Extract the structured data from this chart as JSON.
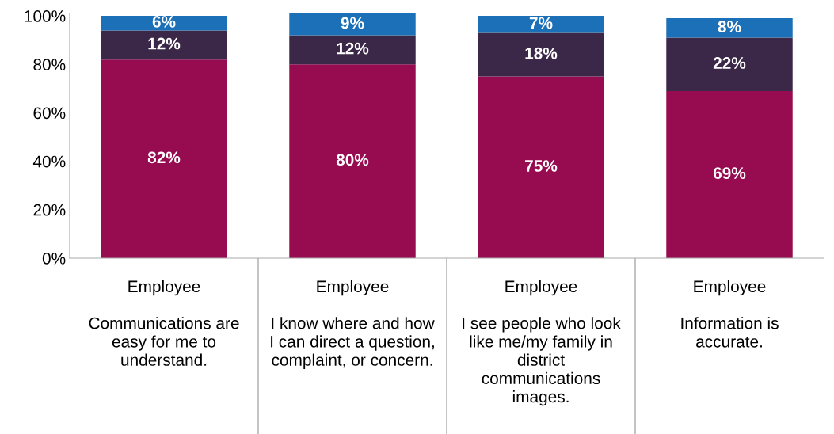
{
  "chart_data": {
    "type": "bar",
    "stacked": true,
    "categories": [
      "Employee\n\nCommunications are\neasy for me to\nunderstand.",
      "Employee\n\nI know where and how\nI can direct a question,\ncomplaint, or concern.",
      "Employee\n\nI see people who look\nlike me/my family in\ndistrict\ncommunications\nimages.",
      "Employee\n\nInformation is\naccurate."
    ],
    "series": [
      {
        "color": "#970c50",
        "values": [
          82,
          80,
          75,
          69
        ],
        "value_labels": [
          "82%",
          "80%",
          "75%",
          "69%"
        ]
      },
      {
        "color": "#3b2748",
        "values": [
          12,
          12,
          18,
          22
        ],
        "value_labels": [
          "12%",
          "12%",
          "18%",
          "22%"
        ]
      },
      {
        "color": "#1b70b8",
        "values": [
          6,
          9,
          7,
          8
        ],
        "value_labels": [
          "6%",
          "9%",
          "7%",
          "8%"
        ]
      }
    ],
    "ylim": [
      0,
      101
    ],
    "yticks": [
      {
        "value": 0,
        "label": "0%"
      },
      {
        "value": 20,
        "label": "20%"
      },
      {
        "value": 40,
        "label": "40%"
      },
      {
        "value": 60,
        "label": "60%"
      },
      {
        "value": 80,
        "label": "80%"
      },
      {
        "value": 100,
        "label": "100%"
      }
    ],
    "grid": false,
    "legend": false
  }
}
